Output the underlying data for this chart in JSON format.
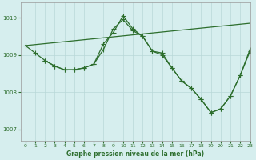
{
  "title": "Graphe pression niveau de la mer (hPa)",
  "background_color": "#d6eeee",
  "grid_color": "#b8d8d8",
  "line_color": "#2d6e2d",
  "xlim": [
    -0.5,
    23
  ],
  "ylim": [
    1006.7,
    1010.4
  ],
  "yticks": [
    1007,
    1008,
    1009,
    1010
  ],
  "xticks": [
    0,
    1,
    2,
    3,
    4,
    5,
    6,
    7,
    8,
    9,
    10,
    11,
    12,
    13,
    14,
    15,
    16,
    17,
    18,
    19,
    20,
    21,
    22,
    23
  ],
  "series1_straight": {
    "x": [
      0,
      23
    ],
    "y": [
      1009.25,
      1009.85
    ]
  },
  "series2": {
    "x": [
      0,
      1,
      2,
      3,
      4,
      5,
      6,
      7,
      8,
      9,
      10,
      11,
      12,
      13,
      14,
      15,
      16,
      17,
      18,
      19,
      20,
      21,
      22,
      23
    ],
    "y": [
      1009.25,
      1009.05,
      1008.85,
      1008.7,
      1008.6,
      1008.6,
      1008.65,
      1008.75,
      1009.15,
      1009.7,
      1009.95,
      1009.65,
      1009.5,
      1009.1,
      1009.05,
      1008.65,
      1008.3,
      1008.1,
      1007.8,
      1007.45,
      1007.55,
      1007.9,
      1008.45,
      1009.1
    ]
  },
  "series3": {
    "x": [
      2,
      3,
      4,
      5,
      6,
      7,
      8,
      9,
      10,
      11,
      12,
      13,
      14,
      15,
      16,
      17,
      18,
      19,
      20,
      21,
      22,
      23
    ],
    "y": [
      1008.85,
      1008.7,
      1008.6,
      1008.6,
      1008.65,
      1008.75,
      1009.3,
      1009.6,
      1010.05,
      1009.7,
      1009.5,
      1009.1,
      1009.0,
      1008.65,
      1008.3,
      1008.1,
      1007.8,
      1007.45,
      1007.55,
      1007.9,
      1008.45,
      1009.15
    ]
  }
}
